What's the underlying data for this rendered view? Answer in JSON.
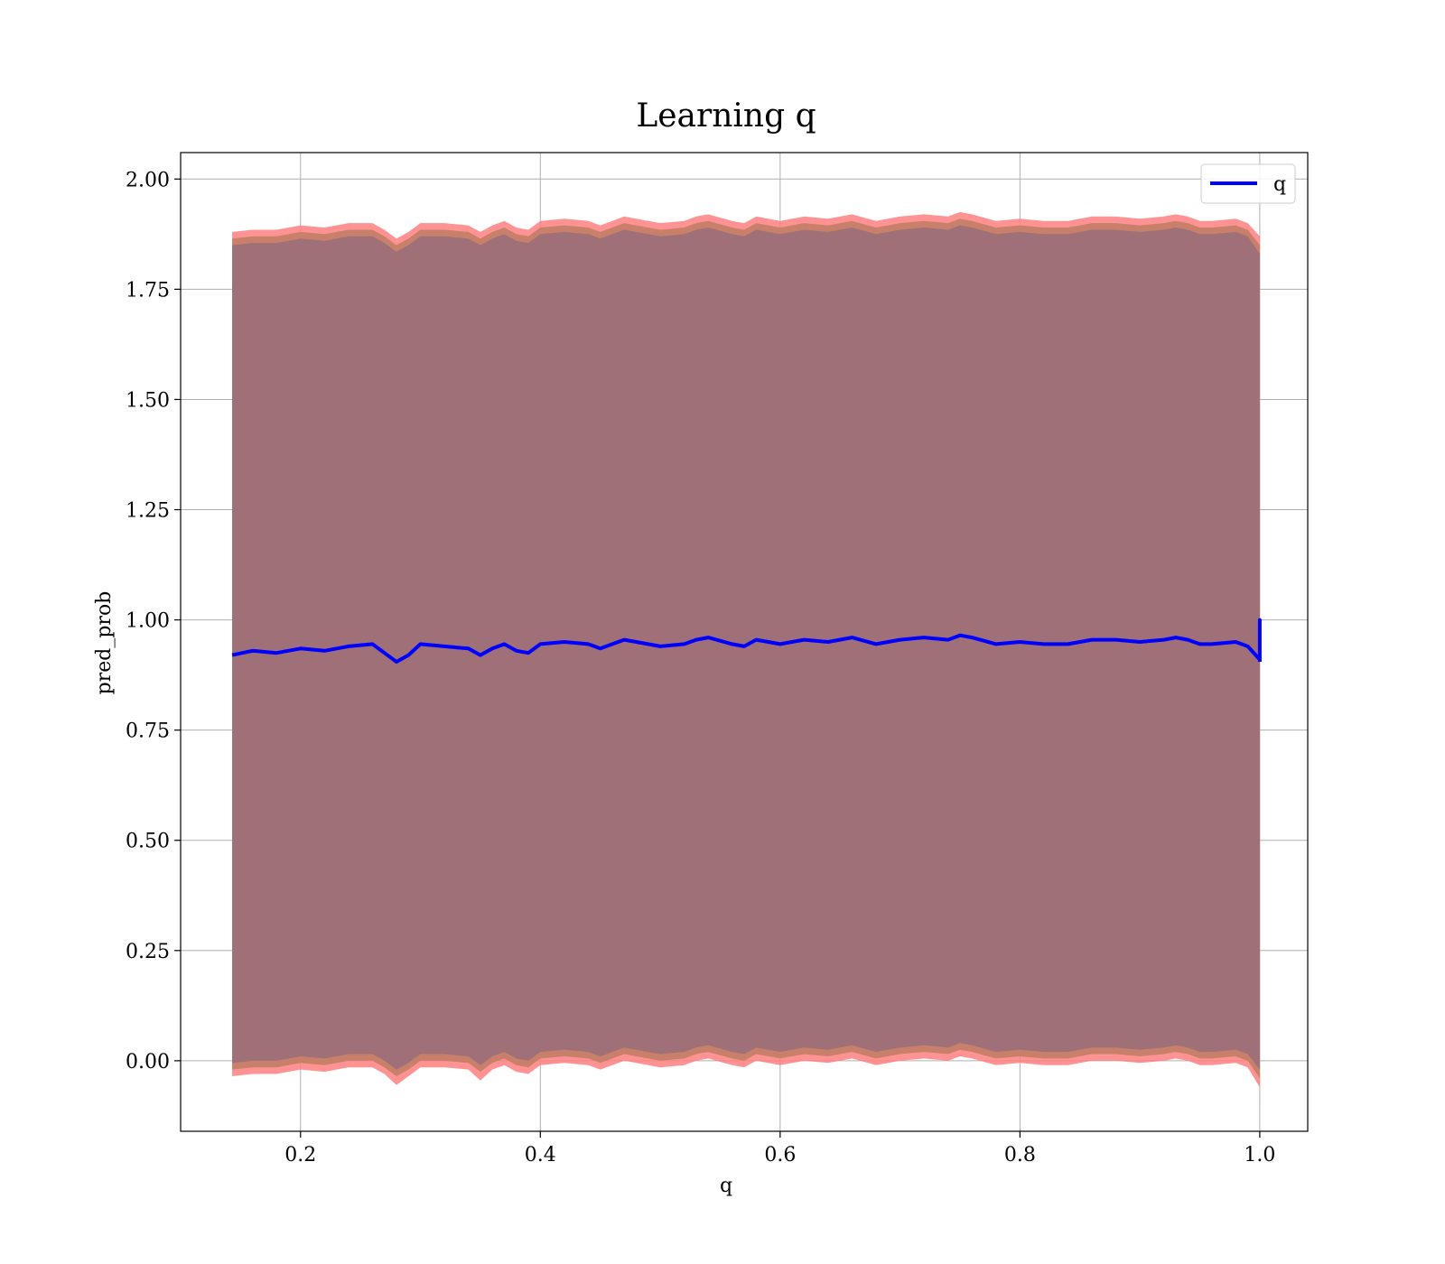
{
  "chart_data": {
    "type": "line",
    "title": "Learning q",
    "xlabel": "q",
    "ylabel": "pred_prob",
    "xlim": [
      0.1,
      1.04
    ],
    "ylim": [
      -0.16,
      2.06
    ],
    "x_ticks": [
      0.2,
      0.4,
      0.6,
      0.8,
      1.0
    ],
    "x_tick_labels": [
      "0.2",
      "0.4",
      "0.6",
      "0.8",
      "1.0"
    ],
    "y_ticks": [
      0.0,
      0.25,
      0.5,
      0.75,
      1.0,
      1.25,
      1.5,
      1.75,
      2.0
    ],
    "y_tick_labels": [
      "0.00",
      "0.25",
      "0.50",
      "0.75",
      "1.00",
      "1.25",
      "1.50",
      "1.75",
      "2.00"
    ],
    "grid": true,
    "legend_position": "top-right",
    "legend": [
      "q"
    ],
    "colors": {
      "line": "#0000ff",
      "band_outer": "#ff7f7f",
      "band_middle": "#c8806a",
      "band_inner": "#a07078"
    },
    "series": [
      {
        "name": "q",
        "x": [
          0.143,
          0.16,
          0.18,
          0.2,
          0.22,
          0.24,
          0.26,
          0.27,
          0.28,
          0.29,
          0.3,
          0.32,
          0.34,
          0.35,
          0.36,
          0.37,
          0.38,
          0.39,
          0.4,
          0.42,
          0.44,
          0.45,
          0.46,
          0.47,
          0.48,
          0.5,
          0.52,
          0.53,
          0.54,
          0.56,
          0.57,
          0.58,
          0.6,
          0.62,
          0.64,
          0.66,
          0.68,
          0.7,
          0.72,
          0.74,
          0.75,
          0.76,
          0.78,
          0.8,
          0.82,
          0.84,
          0.86,
          0.88,
          0.9,
          0.92,
          0.93,
          0.94,
          0.95,
          0.96,
          0.98,
          0.99,
          1.0,
          1.0,
          1.0
        ],
        "y": [
          0.92,
          0.93,
          0.925,
          0.935,
          0.93,
          0.94,
          0.945,
          0.925,
          0.905,
          0.92,
          0.945,
          0.94,
          0.935,
          0.92,
          0.935,
          0.945,
          0.93,
          0.925,
          0.945,
          0.95,
          0.945,
          0.935,
          0.945,
          0.955,
          0.95,
          0.94,
          0.945,
          0.955,
          0.96,
          0.945,
          0.94,
          0.955,
          0.945,
          0.955,
          0.95,
          0.96,
          0.945,
          0.955,
          0.96,
          0.955,
          0.965,
          0.96,
          0.945,
          0.95,
          0.945,
          0.945,
          0.955,
          0.955,
          0.95,
          0.955,
          0.96,
          0.955,
          0.945,
          0.945,
          0.95,
          0.94,
          0.91,
          1.0,
          0.905
        ]
      }
    ],
    "band_x": [
      0.143,
      0.16,
      0.18,
      0.2,
      0.22,
      0.24,
      0.26,
      0.27,
      0.28,
      0.29,
      0.3,
      0.32,
      0.34,
      0.35,
      0.36,
      0.37,
      0.38,
      0.39,
      0.4,
      0.42,
      0.44,
      0.45,
      0.46,
      0.47,
      0.48,
      0.5,
      0.52,
      0.53,
      0.54,
      0.56,
      0.57,
      0.58,
      0.6,
      0.62,
      0.64,
      0.66,
      0.68,
      0.7,
      0.72,
      0.74,
      0.75,
      0.76,
      0.78,
      0.8,
      0.82,
      0.84,
      0.86,
      0.88,
      0.9,
      0.92,
      0.93,
      0.94,
      0.95,
      0.96,
      0.98,
      0.99,
      1.0
    ],
    "band_outer_upper": [
      1.88,
      1.885,
      1.885,
      1.895,
      1.89,
      1.9,
      1.9,
      1.885,
      1.865,
      1.88,
      1.9,
      1.9,
      1.895,
      1.88,
      1.895,
      1.905,
      1.89,
      1.885,
      1.905,
      1.91,
      1.905,
      1.895,
      1.905,
      1.915,
      1.91,
      1.9,
      1.905,
      1.915,
      1.92,
      1.905,
      1.9,
      1.915,
      1.905,
      1.915,
      1.91,
      1.92,
      1.905,
      1.915,
      1.92,
      1.915,
      1.925,
      1.92,
      1.905,
      1.91,
      1.905,
      1.905,
      1.915,
      1.915,
      1.91,
      1.915,
      1.92,
      1.915,
      1.905,
      1.905,
      1.91,
      1.9,
      1.87
    ],
    "band_mid_upper": [
      1.865,
      1.87,
      1.87,
      1.88,
      1.875,
      1.885,
      1.885,
      1.87,
      1.85,
      1.865,
      1.885,
      1.885,
      1.88,
      1.865,
      1.88,
      1.89,
      1.875,
      1.87,
      1.89,
      1.895,
      1.89,
      1.88,
      1.89,
      1.9,
      1.895,
      1.885,
      1.89,
      1.9,
      1.905,
      1.89,
      1.885,
      1.9,
      1.89,
      1.9,
      1.895,
      1.905,
      1.89,
      1.9,
      1.905,
      1.9,
      1.91,
      1.905,
      1.89,
      1.895,
      1.89,
      1.89,
      1.9,
      1.9,
      1.895,
      1.9,
      1.905,
      1.9,
      1.89,
      1.89,
      1.895,
      1.885,
      1.85
    ],
    "band_inner_upper": [
      1.85,
      1.855,
      1.855,
      1.865,
      1.86,
      1.87,
      1.87,
      1.855,
      1.835,
      1.85,
      1.87,
      1.87,
      1.865,
      1.85,
      1.865,
      1.875,
      1.86,
      1.855,
      1.875,
      1.88,
      1.875,
      1.865,
      1.875,
      1.885,
      1.88,
      1.87,
      1.875,
      1.885,
      1.89,
      1.875,
      1.87,
      1.885,
      1.875,
      1.885,
      1.88,
      1.89,
      1.875,
      1.885,
      1.89,
      1.885,
      1.895,
      1.89,
      1.875,
      1.88,
      1.875,
      1.875,
      1.885,
      1.885,
      1.88,
      1.885,
      1.89,
      1.885,
      1.875,
      1.875,
      1.88,
      1.87,
      1.83
    ],
    "band_inner_lower": [
      -0.005,
      0.0,
      0.0,
      0.01,
      0.005,
      0.015,
      0.015,
      0.0,
      -0.02,
      -0.005,
      0.015,
      0.015,
      0.01,
      -0.01,
      0.01,
      0.02,
      0.005,
      0.0,
      0.02,
      0.025,
      0.02,
      0.01,
      0.02,
      0.03,
      0.025,
      0.015,
      0.02,
      0.03,
      0.035,
      0.02,
      0.015,
      0.03,
      0.02,
      0.03,
      0.025,
      0.035,
      0.02,
      0.03,
      0.035,
      0.03,
      0.04,
      0.035,
      0.02,
      0.025,
      0.02,
      0.02,
      0.03,
      0.03,
      0.025,
      0.03,
      0.035,
      0.03,
      0.02,
      0.02,
      0.025,
      0.015,
      -0.02
    ],
    "band_mid_lower": [
      -0.02,
      -0.015,
      -0.015,
      -0.005,
      -0.01,
      0.0,
      0.0,
      -0.015,
      -0.035,
      -0.02,
      0.0,
      0.0,
      -0.005,
      -0.025,
      -0.005,
      0.005,
      -0.01,
      -0.015,
      0.005,
      0.01,
      0.005,
      -0.005,
      0.005,
      0.015,
      0.01,
      0.0,
      0.005,
      0.015,
      0.02,
      0.005,
      0.0,
      0.015,
      0.005,
      0.015,
      0.01,
      0.02,
      0.005,
      0.015,
      0.02,
      0.015,
      0.025,
      0.02,
      0.005,
      0.01,
      0.005,
      0.005,
      0.015,
      0.015,
      0.01,
      0.015,
      0.02,
      0.015,
      0.005,
      0.005,
      0.01,
      0.0,
      -0.04
    ],
    "band_outer_lower": [
      -0.035,
      -0.03,
      -0.03,
      -0.02,
      -0.025,
      -0.015,
      -0.015,
      -0.03,
      -0.055,
      -0.035,
      -0.015,
      -0.015,
      -0.02,
      -0.045,
      -0.02,
      -0.01,
      -0.025,
      -0.03,
      -0.01,
      -0.005,
      -0.01,
      -0.02,
      -0.01,
      0.0,
      -0.005,
      -0.015,
      -0.01,
      0.0,
      0.005,
      -0.01,
      -0.015,
      0.0,
      -0.01,
      0.0,
      -0.005,
      0.005,
      -0.01,
      0.0,
      0.005,
      0.0,
      0.01,
      0.005,
      -0.01,
      -0.005,
      -0.01,
      -0.01,
      0.0,
      0.0,
      -0.005,
      0.0,
      0.005,
      0.0,
      -0.01,
      -0.01,
      -0.005,
      -0.015,
      -0.06
    ]
  }
}
